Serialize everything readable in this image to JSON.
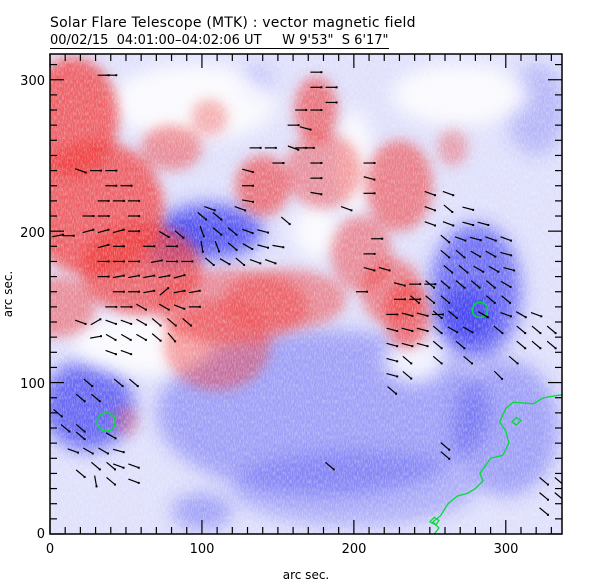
{
  "header": {
    "title": "Solar Flare Telescope (MTK) : vector magnetic field",
    "subtitle": "00/02/15  04:01:00–04:02:06 UT     W 9'53\"  S 6'17\""
  },
  "colors": {
    "positive": "#f03c3c",
    "negative": "#3c3cf0",
    "background": "#dfe0fb",
    "contour": "#00dd33",
    "vector": "#000000"
  },
  "chart_data": {
    "type": "heatmap",
    "title": "Solar Flare Telescope (MTK) : vector magnetic field",
    "subtitle": "00/02/15  04:01:00–04:02:06 UT     W 9'53\"  S 6'17\"",
    "xlabel": "arc sec.",
    "ylabel": "arc sec.",
    "xlim": [
      0,
      337
    ],
    "ylim": [
      0,
      317
    ],
    "x_ticks": [
      0,
      100,
      200,
      300
    ],
    "x_tick_labels": [
      "0",
      "100",
      "200",
      "300"
    ],
    "y_ticks": [
      0,
      100,
      200,
      300
    ],
    "y_tick_labels": [
      "0",
      "100",
      "200",
      "300"
    ],
    "minor_tick_step": 10,
    "positive_regions": [
      {
        "x": 30,
        "y": 215,
        "rx": 45,
        "ry": 45,
        "strength": 0.9
      },
      {
        "x": 15,
        "y": 275,
        "rx": 30,
        "ry": 40,
        "strength": 0.9
      },
      {
        "x": 60,
        "y": 175,
        "rx": 40,
        "ry": 30,
        "strength": 0.85
      },
      {
        "x": 5,
        "y": 150,
        "rx": 25,
        "ry": 20,
        "strength": 0.6
      },
      {
        "x": 80,
        "y": 255,
        "rx": 20,
        "ry": 15,
        "strength": 0.6
      },
      {
        "x": 120,
        "y": 150,
        "rx": 50,
        "ry": 25,
        "strength": 0.6
      },
      {
        "x": 110,
        "y": 125,
        "rx": 35,
        "ry": 30,
        "strength": 0.55
      },
      {
        "x": 155,
        "y": 155,
        "rx": 40,
        "ry": 20,
        "strength": 0.6
      },
      {
        "x": 140,
        "y": 230,
        "rx": 18,
        "ry": 20,
        "strength": 0.75
      },
      {
        "x": 175,
        "y": 280,
        "rx": 14,
        "ry": 22,
        "strength": 0.75
      },
      {
        "x": 180,
        "y": 240,
        "rx": 25,
        "ry": 25,
        "strength": 0.55
      },
      {
        "x": 230,
        "y": 230,
        "rx": 22,
        "ry": 30,
        "strength": 0.7
      },
      {
        "x": 205,
        "y": 185,
        "rx": 20,
        "ry": 25,
        "strength": 0.6
      },
      {
        "x": 225,
        "y": 160,
        "rx": 20,
        "ry": 22,
        "strength": 0.65
      },
      {
        "x": 235,
        "y": 145,
        "rx": 15,
        "ry": 22,
        "strength": 0.8
      },
      {
        "x": 265,
        "y": 255,
        "rx": 10,
        "ry": 12,
        "strength": 0.45
      },
      {
        "x": 105,
        "y": 275,
        "rx": 12,
        "ry": 12,
        "strength": 0.45
      },
      {
        "x": 50,
        "y": 75,
        "rx": 8,
        "ry": 10,
        "strength": 0.4
      }
    ],
    "negative_regions": [
      {
        "x": 105,
        "y": 200,
        "rx": 35,
        "ry": 18,
        "strength": 0.95
      },
      {
        "x": 80,
        "y": 190,
        "rx": 20,
        "ry": 14,
        "strength": 0.8
      },
      {
        "x": 25,
        "y": 85,
        "rx": 30,
        "ry": 30,
        "strength": 0.85
      },
      {
        "x": 280,
        "y": 160,
        "rx": 30,
        "ry": 45,
        "strength": 0.8
      },
      {
        "x": 275,
        "y": 145,
        "rx": 18,
        "ry": 18,
        "strength": 0.95
      },
      {
        "x": 180,
        "y": 80,
        "rx": 110,
        "ry": 55,
        "strength": 0.45
      },
      {
        "x": 300,
        "y": 70,
        "rx": 35,
        "ry": 45,
        "strength": 0.45
      },
      {
        "x": 200,
        "y": 30,
        "rx": 80,
        "ry": 25,
        "strength": 0.35
      },
      {
        "x": 320,
        "y": 280,
        "rx": 20,
        "ry": 30,
        "strength": 0.3
      },
      {
        "x": 100,
        "y": 15,
        "rx": 20,
        "ry": 12,
        "strength": 0.45
      },
      {
        "x": 135,
        "y": 295,
        "rx": 10,
        "ry": 12,
        "strength": 0.45
      }
    ],
    "neutral_regions": [
      {
        "x": 60,
        "y": 125,
        "rx": 45,
        "ry": 20
      },
      {
        "x": 95,
        "y": 285,
        "rx": 55,
        "ry": 25
      },
      {
        "x": 270,
        "y": 290,
        "rx": 45,
        "ry": 20
      },
      {
        "x": 200,
        "y": 245,
        "rx": 12,
        "ry": 35
      },
      {
        "x": 175,
        "y": 200,
        "rx": 15,
        "ry": 18
      },
      {
        "x": 240,
        "y": 115,
        "rx": 20,
        "ry": 15
      }
    ],
    "contours": [
      {
        "name": "green-contour-main",
        "points": [
          [
            337,
            92
          ],
          [
            325,
            90
          ],
          [
            318,
            86
          ],
          [
            305,
            87
          ],
          [
            300,
            83
          ],
          [
            296,
            74
          ],
          [
            300,
            68
          ],
          [
            302,
            60
          ],
          [
            298,
            52
          ],
          [
            290,
            50
          ],
          [
            283,
            40
          ],
          [
            285,
            35
          ],
          [
            280,
            30
          ],
          [
            275,
            27
          ],
          [
            268,
            25
          ],
          [
            262,
            20
          ],
          [
            257,
            12
          ],
          [
            252,
            8
          ],
          [
            256,
            4
          ],
          [
            253,
            0
          ]
        ]
      },
      {
        "name": "green-contour-small-loop",
        "points": [
          [
            250,
            8
          ],
          [
            253,
            11
          ],
          [
            256,
            9
          ],
          [
            254,
            6
          ],
          [
            250,
            8
          ]
        ]
      },
      {
        "name": "green-contour-island",
        "points": [
          [
            304,
            74
          ],
          [
            307,
            77
          ],
          [
            310,
            75
          ],
          [
            307,
            72
          ],
          [
            304,
            74
          ]
        ]
      }
    ],
    "circles": [
      {
        "name": "negative-pole-marker",
        "x": 283,
        "y": 148,
        "r": 5
      },
      {
        "name": "negative-pole-marker-south",
        "x": 37,
        "y": 74,
        "r": 6
      }
    ],
    "vectors": [
      [
        35,
        303,
        0
      ],
      [
        40,
        303,
        0
      ],
      [
        20,
        240,
        -20
      ],
      [
        30,
        240,
        0
      ],
      [
        40,
        240,
        0
      ],
      [
        40,
        230,
        0
      ],
      [
        50,
        230,
        0
      ],
      [
        35,
        220,
        0
      ],
      [
        45,
        220,
        0
      ],
      [
        55,
        220,
        0
      ],
      [
        25,
        210,
        0
      ],
      [
        35,
        210,
        0
      ],
      [
        55,
        210,
        0
      ],
      [
        25,
        200,
        15
      ],
      [
        35,
        200,
        15
      ],
      [
        45,
        200,
        15
      ],
      [
        55,
        200,
        0
      ],
      [
        35,
        190,
        15
      ],
      [
        45,
        190,
        0
      ],
      [
        65,
        190,
        0
      ],
      [
        80,
        190,
        0
      ],
      [
        35,
        180,
        0
      ],
      [
        45,
        180,
        0
      ],
      [
        55,
        180,
        0
      ],
      [
        70,
        180,
        10
      ],
      [
        80,
        180,
        0
      ],
      [
        90,
        180,
        0
      ],
      [
        35,
        170,
        0
      ],
      [
        45,
        170,
        10
      ],
      [
        55,
        170,
        10
      ],
      [
        65,
        170,
        10
      ],
      [
        75,
        170,
        10
      ],
      [
        85,
        170,
        15
      ],
      [
        45,
        160,
        0
      ],
      [
        55,
        160,
        0
      ],
      [
        65,
        160,
        10
      ],
      [
        75,
        160,
        40
      ],
      [
        85,
        160,
        10
      ],
      [
        95,
        160,
        10
      ],
      [
        40,
        150,
        0
      ],
      [
        50,
        150,
        0
      ],
      [
        60,
        150,
        -30
      ],
      [
        75,
        150,
        -30
      ],
      [
        85,
        150,
        -20
      ],
      [
        95,
        150,
        0
      ],
      [
        20,
        140,
        -20
      ],
      [
        30,
        140,
        30
      ],
      [
        40,
        140,
        -20
      ],
      [
        50,
        140,
        -20
      ],
      [
        60,
        140,
        -30
      ],
      [
        70,
        140,
        -40
      ],
      [
        80,
        140,
        -40
      ],
      [
        90,
        140,
        -40
      ],
      [
        30,
        130,
        10
      ],
      [
        40,
        130,
        -30
      ],
      [
        50,
        130,
        -30
      ],
      [
        60,
        130,
        -30
      ],
      [
        70,
        130,
        -40
      ],
      [
        80,
        130,
        -50
      ],
      [
        40,
        120,
        -20
      ],
      [
        50,
        120,
        -20
      ],
      [
        5,
        197,
        10
      ],
      [
        12,
        197,
        0
      ],
      [
        75,
        198,
        -30
      ],
      [
        85,
        198,
        -40
      ],
      [
        100,
        210,
        -40
      ],
      [
        110,
        210,
        -40
      ],
      [
        100,
        200,
        -70
      ],
      [
        110,
        200,
        -40
      ],
      [
        120,
        200,
        -40
      ],
      [
        130,
        200,
        -20
      ],
      [
        140,
        200,
        -15
      ],
      [
        100,
        190,
        -80
      ],
      [
        110,
        190,
        -70
      ],
      [
        120,
        190,
        -40
      ],
      [
        130,
        190,
        -30
      ],
      [
        140,
        190,
        -15
      ],
      [
        150,
        190,
        -10
      ],
      [
        105,
        180,
        -40
      ],
      [
        115,
        180,
        -30
      ],
      [
        125,
        180,
        -40
      ],
      [
        135,
        180,
        -20
      ],
      [
        145,
        180,
        -20
      ],
      [
        105,
        215,
        -20
      ],
      [
        125,
        215,
        -20
      ],
      [
        155,
        207,
        -40
      ],
      [
        175,
        245,
        0
      ],
      [
        175,
        235,
        0
      ],
      [
        175,
        225,
        -10
      ],
      [
        165,
        255,
        0
      ],
      [
        170,
        255,
        0
      ],
      [
        135,
        255,
        0
      ],
      [
        145,
        255,
        0
      ],
      [
        150,
        245,
        0
      ],
      [
        130,
        240,
        -15
      ],
      [
        130,
        230,
        0
      ],
      [
        130,
        220,
        -10
      ],
      [
        175,
        305,
        0
      ],
      [
        175,
        295,
        0
      ],
      [
        185,
        295,
        0
      ],
      [
        185,
        285,
        0
      ],
      [
        165,
        280,
        0
      ],
      [
        175,
        280,
        0
      ],
      [
        160,
        270,
        0
      ],
      [
        168,
        268,
        -15
      ],
      [
        160,
        255,
        -20
      ],
      [
        195,
        215,
        -20
      ],
      [
        210,
        245,
        0
      ],
      [
        210,
        235,
        -15
      ],
      [
        210,
        225,
        0
      ],
      [
        210,
        185,
        0
      ],
      [
        210,
        175,
        -15
      ],
      [
        215,
        195,
        0
      ],
      [
        205,
        160,
        0
      ],
      [
        220,
        175,
        -15
      ],
      [
        230,
        165,
        -15
      ],
      [
        240,
        165,
        0
      ],
      [
        250,
        165,
        0
      ],
      [
        230,
        155,
        0
      ],
      [
        240,
        155,
        0
      ],
      [
        225,
        145,
        0
      ],
      [
        235,
        145,
        -15
      ],
      [
        245,
        145,
        -15
      ],
      [
        255,
        145,
        0
      ],
      [
        225,
        135,
        -15
      ],
      [
        235,
        135,
        -15
      ],
      [
        245,
        135,
        -15
      ],
      [
        225,
        125,
        -15
      ],
      [
        235,
        125,
        -15
      ],
      [
        245,
        125,
        -15
      ],
      [
        225,
        115,
        -15
      ],
      [
        235,
        115,
        -40
      ],
      [
        225,
        105,
        -15
      ],
      [
        235,
        105,
        -40
      ],
      [
        225,
        95,
        -40
      ],
      [
        250,
        225,
        -20
      ],
      [
        262,
        225,
        -20
      ],
      [
        250,
        215,
        -20
      ],
      [
        262,
        215,
        -40
      ],
      [
        275,
        215,
        -15
      ],
      [
        250,
        205,
        -20
      ],
      [
        262,
        205,
        -20
      ],
      [
        275,
        205,
        -15
      ],
      [
        285,
        205,
        -15
      ],
      [
        260,
        195,
        -40
      ],
      [
        270,
        195,
        -20
      ],
      [
        280,
        195,
        -15
      ],
      [
        290,
        195,
        -20
      ],
      [
        300,
        195,
        -20
      ],
      [
        260,
        185,
        -40
      ],
      [
        270,
        185,
        -40
      ],
      [
        280,
        185,
        -30
      ],
      [
        290,
        185,
        -30
      ],
      [
        300,
        185,
        -15
      ],
      [
        262,
        175,
        -40
      ],
      [
        272,
        175,
        -40
      ],
      [
        282,
        175,
        -30
      ],
      [
        292,
        175,
        -30
      ],
      [
        302,
        175,
        -15
      ],
      [
        250,
        165,
        -40
      ],
      [
        260,
        165,
        -40
      ],
      [
        270,
        165,
        -40
      ],
      [
        280,
        165,
        -40
      ],
      [
        290,
        165,
        -40
      ],
      [
        300,
        165,
        -30
      ],
      [
        240,
        155,
        -40
      ],
      [
        250,
        155,
        -40
      ],
      [
        260,
        155,
        -40
      ],
      [
        290,
        155,
        -40
      ],
      [
        300,
        155,
        -40
      ],
      [
        255,
        145,
        -40
      ],
      [
        265,
        145,
        -40
      ],
      [
        285,
        145,
        -30
      ],
      [
        300,
        145,
        -20
      ],
      [
        310,
        145,
        -30
      ],
      [
        320,
        145,
        -20
      ],
      [
        255,
        135,
        -40
      ],
      [
        265,
        135,
        -30
      ],
      [
        275,
        135,
        -30
      ],
      [
        295,
        135,
        -40
      ],
      [
        310,
        135,
        -40
      ],
      [
        320,
        135,
        -40
      ],
      [
        330,
        135,
        -40
      ],
      [
        255,
        125,
        -40
      ],
      [
        270,
        125,
        -40
      ],
      [
        310,
        125,
        -40
      ],
      [
        320,
        125,
        -40
      ],
      [
        330,
        125,
        -40
      ],
      [
        255,
        115,
        -40
      ],
      [
        275,
        115,
        -40
      ],
      [
        305,
        115,
        -40
      ],
      [
        295,
        105,
        -45
      ],
      [
        5,
        80,
        -40
      ],
      [
        20,
        90,
        -40
      ],
      [
        30,
        90,
        -40
      ],
      [
        10,
        70,
        -40
      ],
      [
        20,
        70,
        -40
      ],
      [
        20,
        65,
        -40
      ],
      [
        40,
        65,
        -30
      ],
      [
        15,
        55,
        -20
      ],
      [
        25,
        55,
        -30
      ],
      [
        35,
        55,
        -30
      ],
      [
        45,
        55,
        -15
      ],
      [
        30,
        45,
        -40
      ],
      [
        40,
        45,
        -40
      ],
      [
        45,
        45,
        -20
      ],
      [
        55,
        45,
        -20
      ],
      [
        30,
        35,
        -80
      ],
      [
        40,
        35,
        -40
      ],
      [
        55,
        35,
        -20
      ],
      [
        20,
        40,
        -40
      ],
      [
        25,
        100,
        -40
      ],
      [
        45,
        100,
        -40
      ],
      [
        55,
        100,
        -40
      ],
      [
        260,
        58,
        -40
      ],
      [
        260,
        52,
        -40
      ],
      [
        184,
        45,
        -40
      ],
      [
        325,
        35,
        -40
      ],
      [
        335,
        35,
        -40
      ],
      [
        325,
        25,
        -40
      ],
      [
        335,
        25,
        -40
      ],
      [
        325,
        15,
        -40
      ]
    ]
  },
  "labels": {
    "xlabel": "arc sec.",
    "ylabel": "arc sec."
  }
}
